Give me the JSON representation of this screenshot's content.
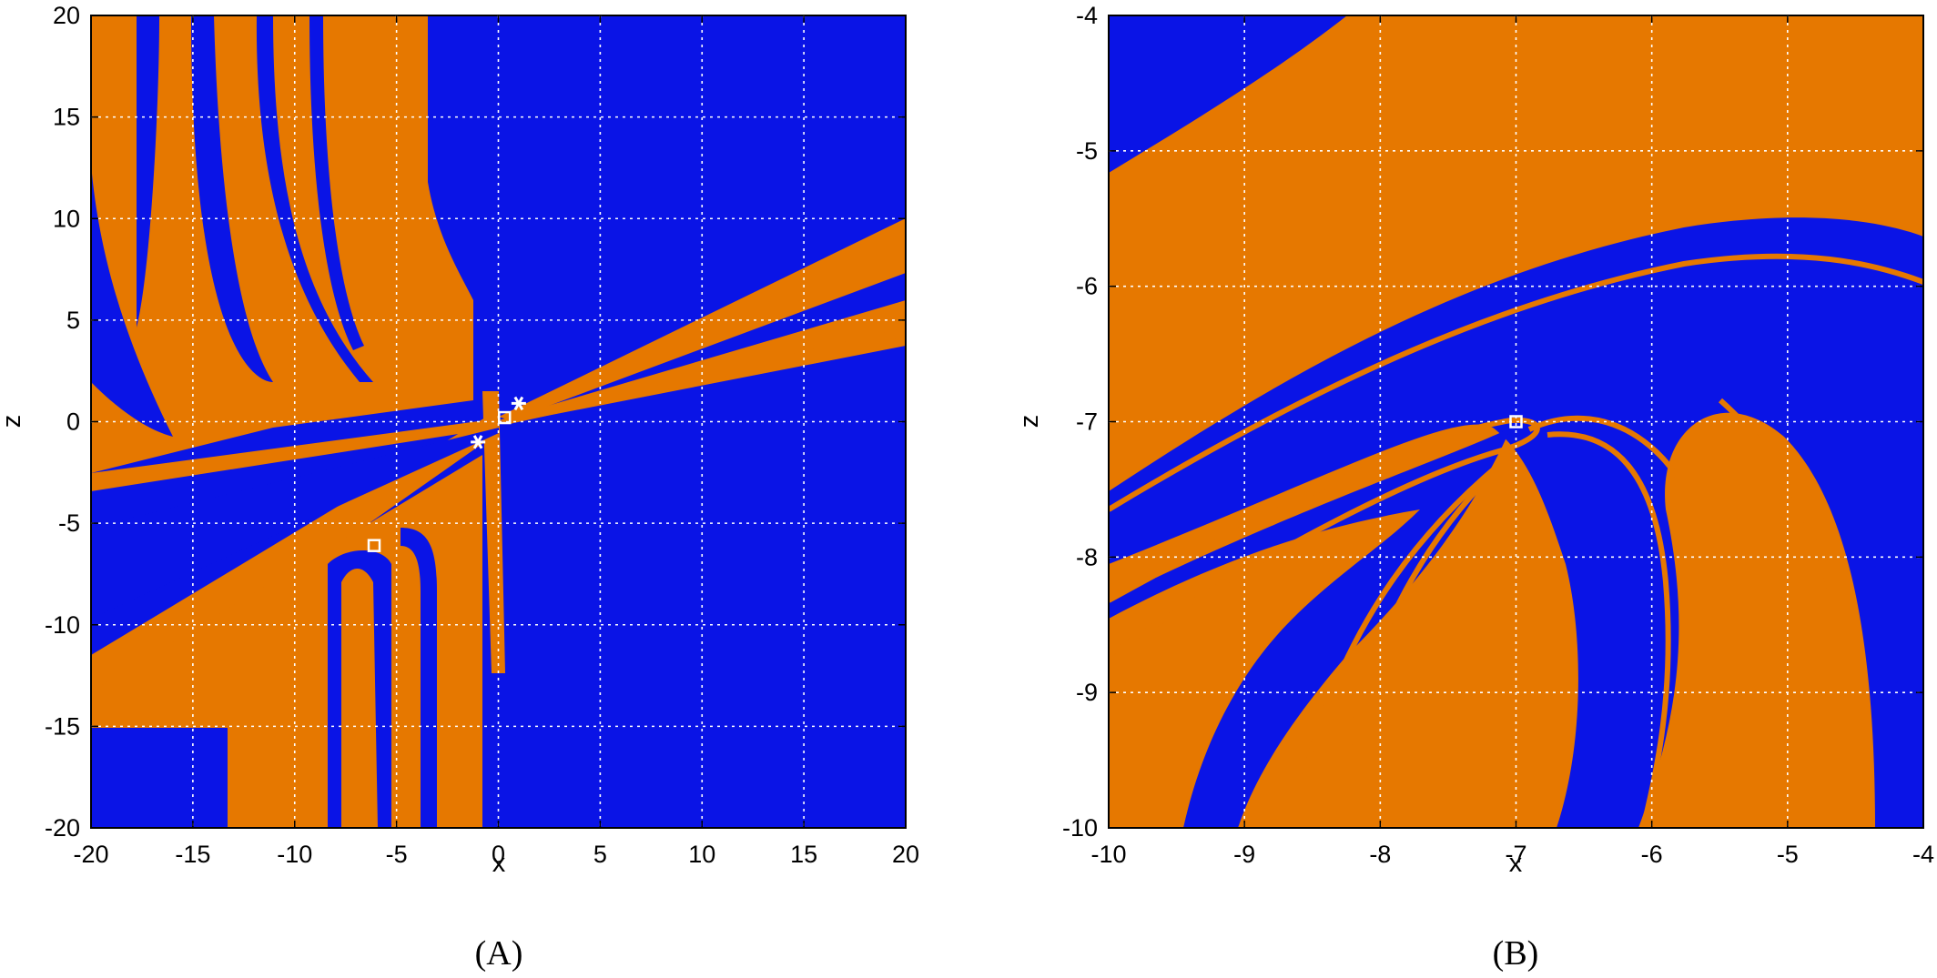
{
  "colors": {
    "basin_orange": "#e67800",
    "basin_orange_dark": "#cc6400",
    "basin_blue": "#0a14e6",
    "basin_blue_dark": "#0a0ac4",
    "grid": "#ffffff",
    "marker": "#ffffff"
  },
  "chart_data": [
    {
      "type": "heatmap",
      "title": "",
      "panel_label": "(A)",
      "xlabel": "x",
      "ylabel": "z",
      "xlim": [
        -20,
        20
      ],
      "ylim": [
        -20,
        20
      ],
      "xticks": [
        -20,
        -15,
        -10,
        -5,
        0,
        5,
        10,
        15,
        20
      ],
      "yticks": [
        -20,
        -15,
        -10,
        -5,
        0,
        5,
        10,
        15,
        20
      ],
      "grid": true,
      "grid_style": "dotted white",
      "legend": "none",
      "categories": [
        "orange basin",
        "blue basin"
      ],
      "markers": [
        {
          "shape": "square",
          "x": 0.3,
          "z": 0.2
        },
        {
          "shape": "square",
          "x": -6.1,
          "z": -6.1
        },
        {
          "shape": "asterisk",
          "x": 1.0,
          "z": 0.9
        },
        {
          "shape": "asterisk",
          "x": -1.0,
          "z": -1.0
        }
      ]
    },
    {
      "type": "heatmap",
      "title": "",
      "panel_label": "(B)",
      "xlabel": "x",
      "ylabel": "z",
      "xlim": [
        -10,
        -4
      ],
      "ylim": [
        -10,
        -4
      ],
      "xticks": [
        -10,
        -9,
        -8,
        -7,
        -6,
        -5,
        -4
      ],
      "yticks": [
        -10,
        -9,
        -8,
        -7,
        -6,
        -5,
        -4
      ],
      "grid": true,
      "grid_style": "dotted white",
      "legend": "none",
      "categories": [
        "orange basin",
        "blue basin"
      ],
      "markers": [
        {
          "shape": "square",
          "x": -7.0,
          "z": -7.0
        }
      ]
    }
  ]
}
